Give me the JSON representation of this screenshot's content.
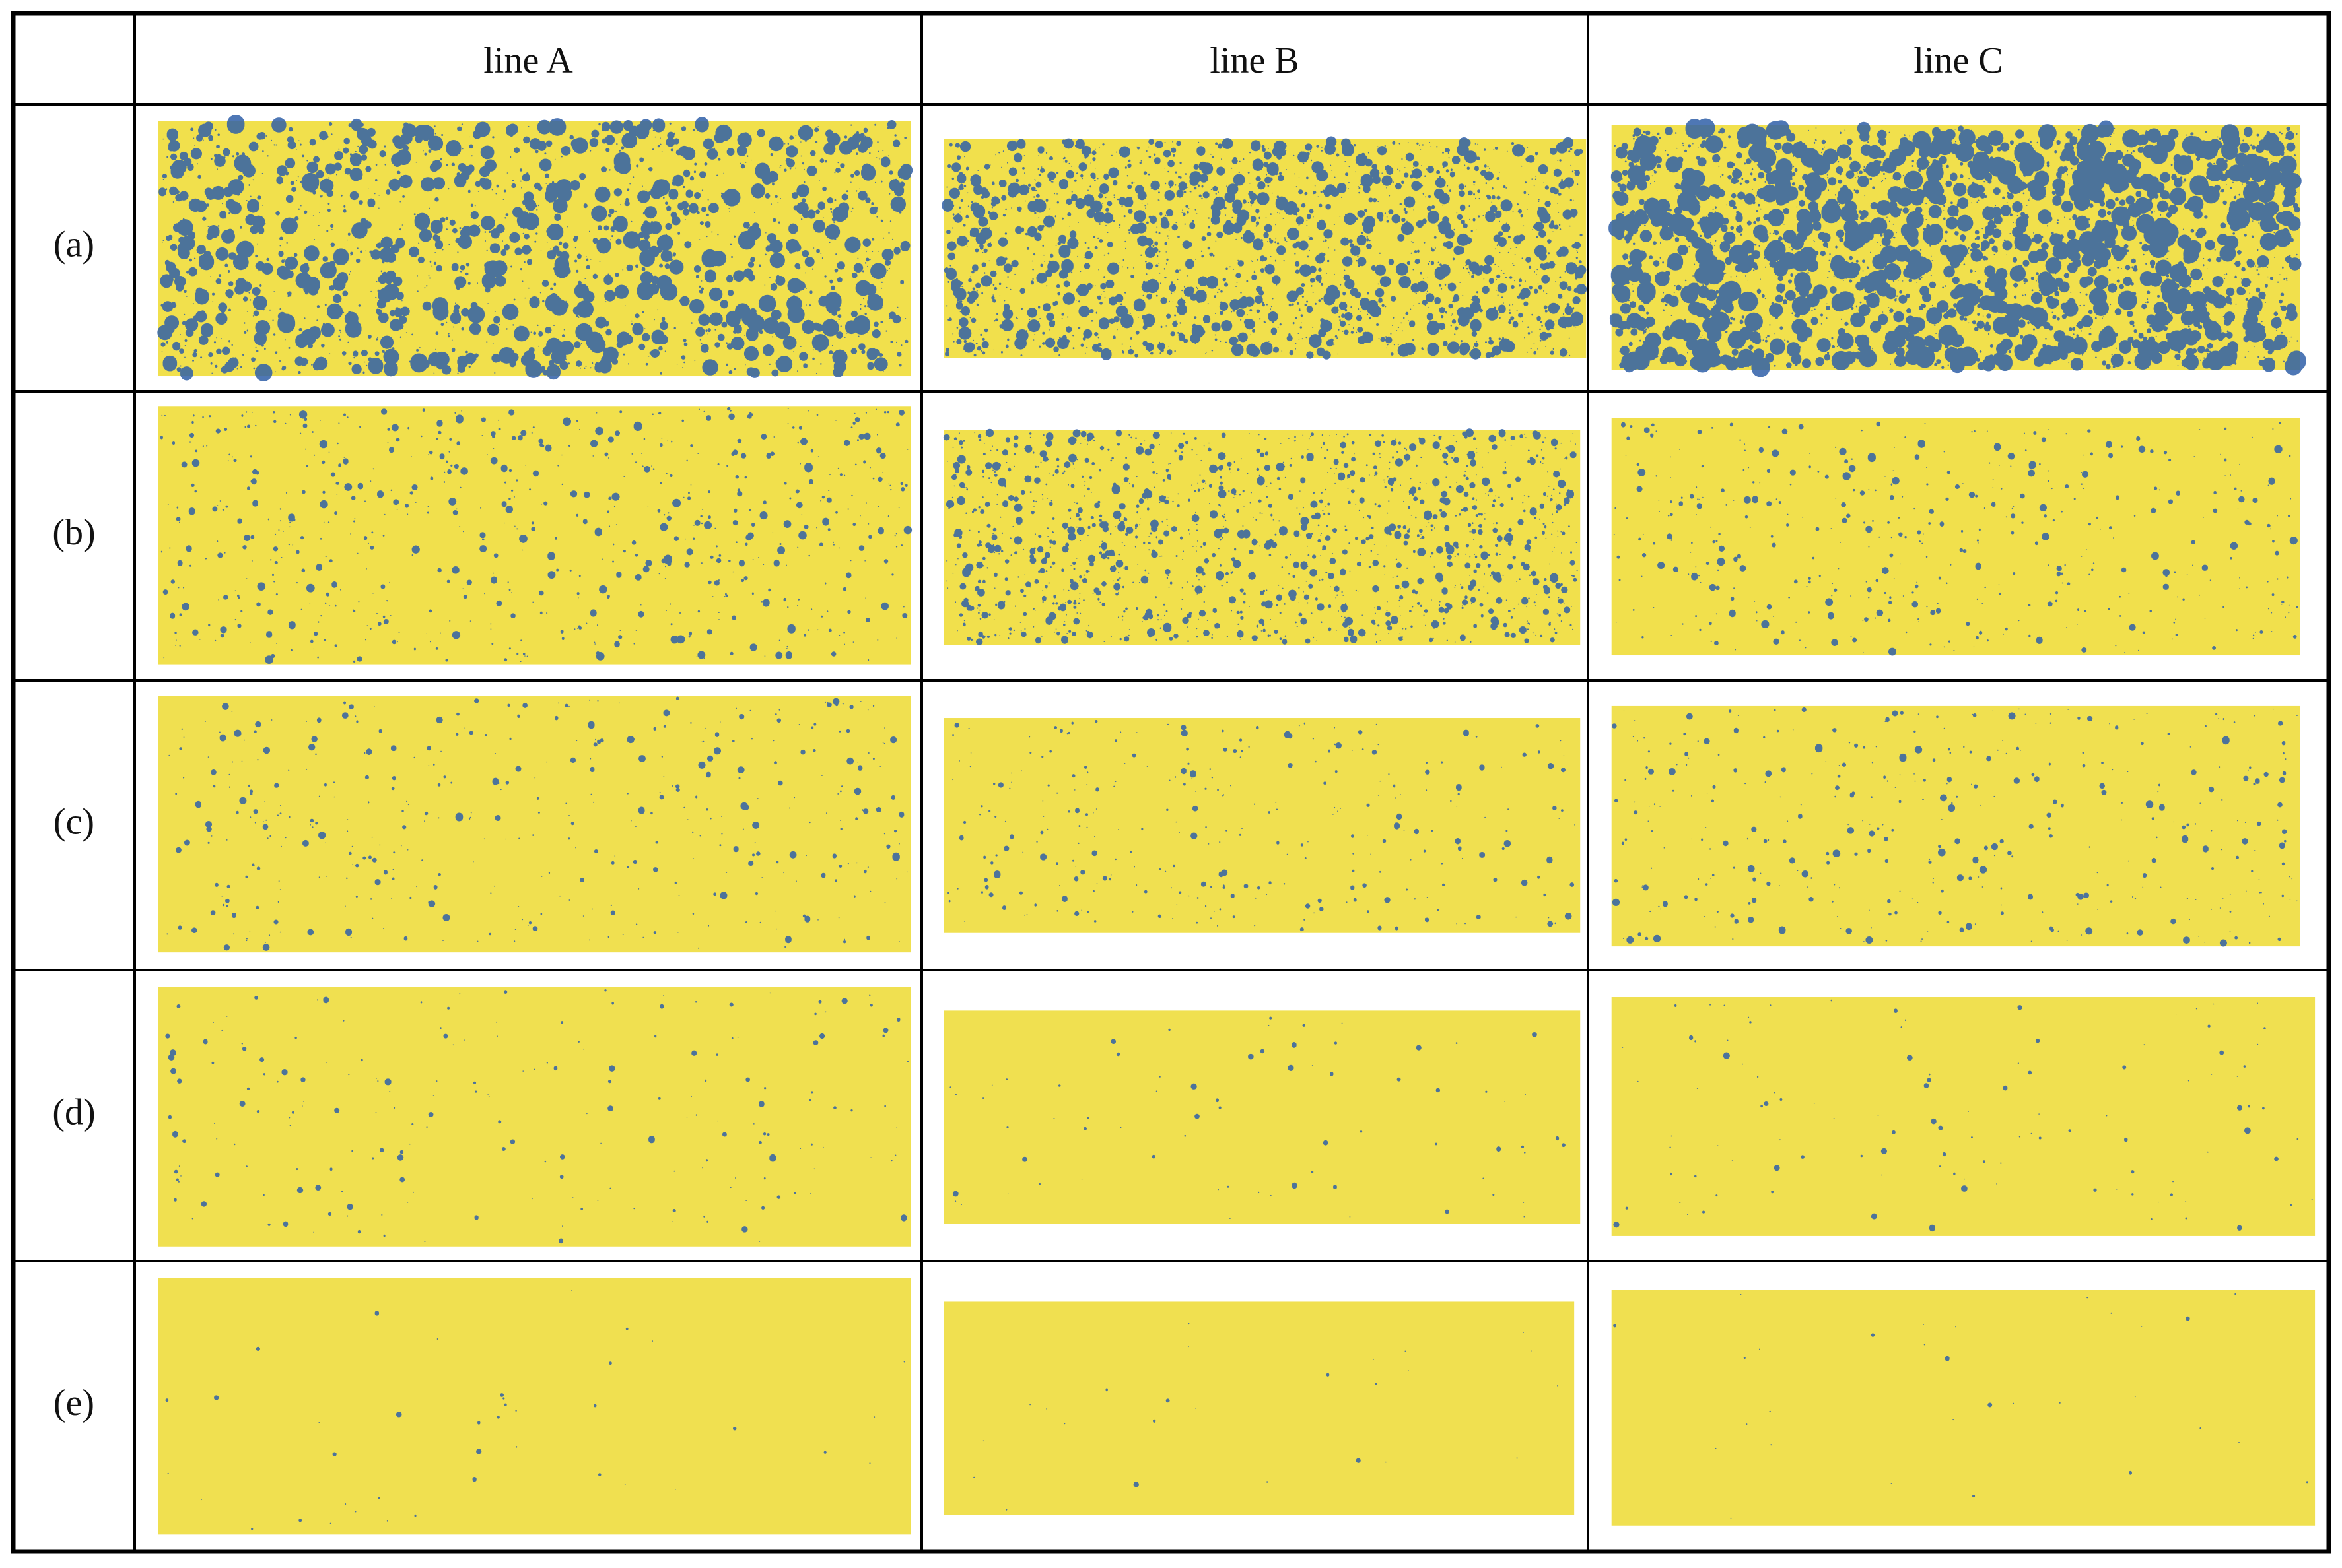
{
  "table": {
    "header": [
      "line A",
      "line B",
      "line C"
    ],
    "rows": [
      "(a)",
      "(b)",
      "(c)",
      "(d)",
      "(e)"
    ]
  }
}
